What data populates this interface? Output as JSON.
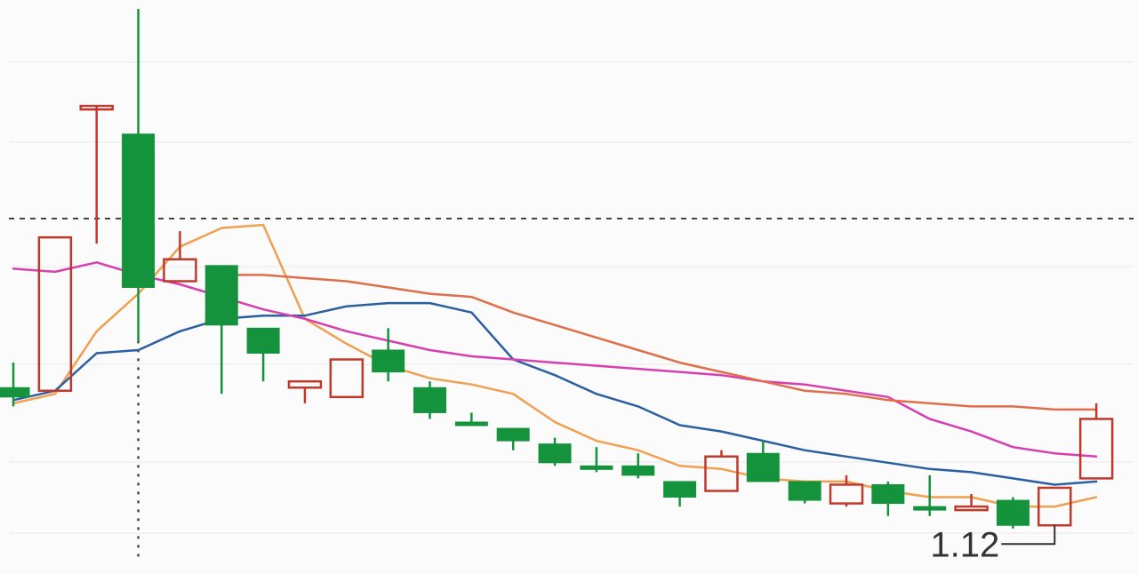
{
  "chart_data": {
    "type": "candlestick",
    "colors": {
      "up": "#c0392b",
      "down": "#14933c",
      "ma5": "#f0a050",
      "ma10": "#2c5fa0",
      "ma20": "#d63fb0",
      "ma30": "#df6e4a"
    },
    "candles": [
      {
        "o": 1.5,
        "h": 1.58,
        "l": 1.44,
        "c": 1.47
      },
      {
        "o": 1.49,
        "h": 1.98,
        "l": 1.49,
        "c": 1.98
      },
      {
        "o": 2.4,
        "h": 2.4,
        "l": 1.96,
        "c": 2.4
      },
      {
        "o": 2.31,
        "h": 2.71,
        "l": 1.65,
        "c": 1.82
      },
      {
        "o": 1.84,
        "h": 2.0,
        "l": 1.84,
        "c": 1.91
      },
      {
        "o": 1.89,
        "h": 1.89,
        "l": 1.48,
        "c": 1.7
      },
      {
        "o": 1.69,
        "h": 1.69,
        "l": 1.52,
        "c": 1.61
      },
      {
        "o": 1.5,
        "h": 1.52,
        "l": 1.45,
        "c": 1.52
      },
      {
        "o": 1.47,
        "h": 1.59,
        "l": 1.47,
        "c": 1.59
      },
      {
        "o": 1.62,
        "h": 1.69,
        "l": 1.52,
        "c": 1.55
      },
      {
        "o": 1.5,
        "h": 1.52,
        "l": 1.4,
        "c": 1.42
      },
      {
        "o": 1.39,
        "h": 1.42,
        "l": 1.38,
        "c": 1.38
      },
      {
        "o": 1.37,
        "h": 1.37,
        "l": 1.3,
        "c": 1.33
      },
      {
        "o": 1.32,
        "h": 1.34,
        "l": 1.25,
        "c": 1.26
      },
      {
        "o": 1.25,
        "h": 1.31,
        "l": 1.23,
        "c": 1.24
      },
      {
        "o": 1.25,
        "h": 1.29,
        "l": 1.21,
        "c": 1.22
      },
      {
        "o": 1.2,
        "h": 1.2,
        "l": 1.12,
        "c": 1.15
      },
      {
        "o": 1.17,
        "h": 1.3,
        "l": 1.17,
        "c": 1.28
      },
      {
        "o": 1.29,
        "h": 1.33,
        "l": 1.2,
        "c": 1.2
      },
      {
        "o": 1.2,
        "h": 1.2,
        "l": 1.13,
        "c": 1.14
      },
      {
        "o": 1.13,
        "h": 1.22,
        "l": 1.12,
        "c": 1.19
      },
      {
        "o": 1.19,
        "h": 1.2,
        "l": 1.09,
        "c": 1.13
      },
      {
        "o": 1.12,
        "h": 1.22,
        "l": 1.09,
        "c": 1.11
      },
      {
        "o": 1.11,
        "h": 1.16,
        "l": 1.11,
        "c": 1.12
      },
      {
        "o": 1.14,
        "h": 1.15,
        "l": 1.05,
        "c": 1.06
      },
      {
        "o": 1.06,
        "h": 1.18,
        "l": 1.06,
        "c": 1.18
      },
      {
        "o": 1.21,
        "h": 1.45,
        "l": 1.21,
        "c": 1.4
      }
    ],
    "moving_averages": [
      {
        "key": "ma5",
        "values": [
          1.45,
          1.48,
          1.68,
          1.8,
          1.95,
          2.01,
          2.02,
          1.72,
          1.64,
          1.57,
          1.53,
          1.51,
          1.48,
          1.39,
          1.33,
          1.3,
          1.25,
          1.24,
          1.21,
          1.2,
          1.2,
          1.17,
          1.15,
          1.15,
          1.12,
          1.12,
          1.15
        ]
      },
      {
        "key": "ma10",
        "values": [
          1.46,
          1.49,
          1.61,
          1.62,
          1.68,
          1.72,
          1.73,
          1.73,
          1.76,
          1.77,
          1.77,
          1.74,
          1.59,
          1.54,
          1.48,
          1.44,
          1.38,
          1.36,
          1.33,
          1.3,
          1.28,
          1.26,
          1.24,
          1.23,
          1.21,
          1.19,
          1.2
        ]
      },
      {
        "key": "ma20",
        "values": [
          1.88,
          1.87,
          1.9,
          1.86,
          1.83,
          1.79,
          1.75,
          1.72,
          1.68,
          1.65,
          1.62,
          1.6,
          1.59,
          1.58,
          1.57,
          1.56,
          1.55,
          1.54,
          1.52,
          1.51,
          1.49,
          1.47,
          1.4,
          1.36,
          1.31,
          1.29,
          1.28
        ]
      },
      {
        "start": 5,
        "key": "ma30",
        "values": [
          1.86,
          1.86,
          1.85,
          1.84,
          1.82,
          1.8,
          1.79,
          1.74,
          1.7,
          1.66,
          1.62,
          1.58,
          1.55,
          1.52,
          1.49,
          1.48,
          1.46,
          1.45,
          1.44,
          1.44,
          1.43,
          1.43
        ]
      }
    ],
    "reference_line": 2.04,
    "cursor_index": 3,
    "min_label": "1.12",
    "min_index": 25,
    "ylim": [
      0.95,
      2.71
    ]
  }
}
